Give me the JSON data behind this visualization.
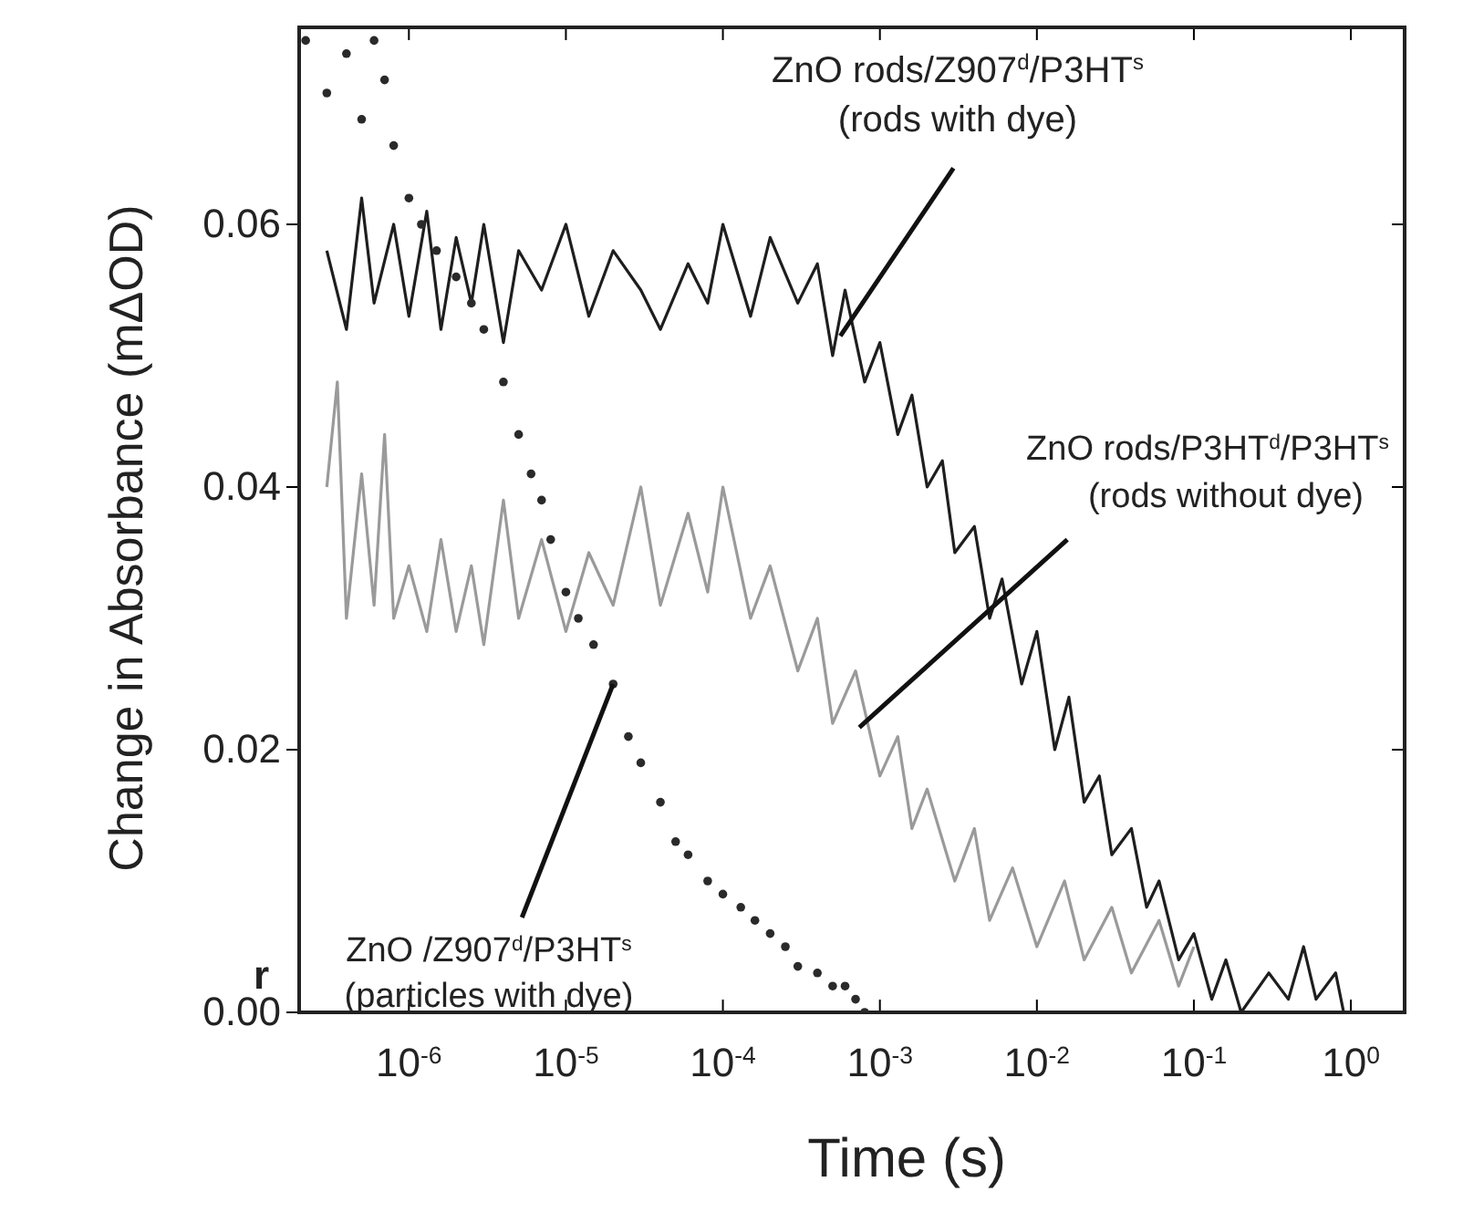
{
  "chart_data": {
    "type": "line",
    "xlabel": "Time (s)",
    "ylabel": "Change in Absorbance (mΔOD)",
    "log": "x",
    "xlim": [
      2e-07,
      2.2
    ],
    "ylim": [
      0,
      0.075
    ],
    "xticks": [
      {
        "value": 1e-06,
        "label": "10$^{-6}$"
      },
      {
        "value": 1e-05,
        "label": "10$^{-5}$"
      },
      {
        "value": 0.0001,
        "label": "10$^{-4}$"
      },
      {
        "value": 0.001,
        "label": "10$^{-3}$"
      },
      {
        "value": 0.01,
        "label": "10$^{-2}$"
      },
      {
        "value": 0.1,
        "label": "10$^{-1}$"
      },
      {
        "value": 1,
        "label": "10$^{0}$"
      }
    ],
    "yticks": [
      {
        "value": 0,
        "label": "0.00"
      },
      {
        "value": 0.02,
        "label": "0.02"
      },
      {
        "value": 0.04,
        "label": "0.04"
      },
      {
        "value": 0.06,
        "label": "0.06"
      }
    ],
    "grid": false,
    "series": [
      {
        "color": "#1e1e1e",
        "x": [
          3e-07,
          4e-07,
          5e-07,
          6e-07,
          8e-07,
          1e-06,
          1.3e-06,
          1.6e-06,
          2e-06,
          2.5e-06,
          3e-06,
          4e-06,
          5e-06,
          7e-06,
          1e-05,
          1.4e-05,
          2e-05,
          3e-05,
          4e-05,
          6e-05,
          8e-05,
          0.0001,
          0.00015,
          0.0002,
          0.0003,
          0.0004,
          0.0005,
          0.0006,
          0.0008,
          0.001,
          0.0013,
          0.0016,
          0.002,
          0.0025,
          0.003,
          0.004,
          0.005,
          0.006,
          0.008,
          0.01,
          0.013,
          0.016,
          0.02,
          0.025,
          0.03,
          0.04,
          0.05,
          0.06,
          0.08,
          0.1,
          0.13,
          0.16,
          0.2,
          0.3,
          0.4,
          0.5,
          0.6,
          0.8,
          0.9
        ],
        "values": [
          0.058,
          0.052,
          0.062,
          0.054,
          0.06,
          0.053,
          0.061,
          0.052,
          0.059,
          0.054,
          0.06,
          0.051,
          0.058,
          0.055,
          0.06,
          0.053,
          0.058,
          0.055,
          0.052,
          0.057,
          0.054,
          0.06,
          0.053,
          0.059,
          0.054,
          0.057,
          0.05,
          0.055,
          0.048,
          0.051,
          0.044,
          0.047,
          0.04,
          0.042,
          0.035,
          0.037,
          0.03,
          0.033,
          0.025,
          0.029,
          0.02,
          0.024,
          0.016,
          0.018,
          0.012,
          0.014,
          0.008,
          0.01,
          0.004,
          0.006,
          0.001,
          0.004,
          0,
          0.003,
          0.001,
          0.005,
          0.001,
          0.003,
          0
        ]
      },
      {
        "color": "#9a9a9a",
        "x": [
          3e-07,
          3.5e-07,
          4e-07,
          5e-07,
          6e-07,
          7e-07,
          8e-07,
          1e-06,
          1.3e-06,
          1.6e-06,
          2e-06,
          2.5e-06,
          3e-06,
          4e-06,
          5e-06,
          7e-06,
          1e-05,
          1.4e-05,
          2e-05,
          3e-05,
          4e-05,
          6e-05,
          8e-05,
          0.0001,
          0.00015,
          0.0002,
          0.0003,
          0.0004,
          0.0005,
          0.0007,
          0.001,
          0.0013,
          0.0016,
          0.002,
          0.003,
          0.004,
          0.005,
          0.007,
          0.01,
          0.015,
          0.02,
          0.03,
          0.04,
          0.06,
          0.08,
          0.1
        ],
        "values": [
          0.04,
          0.048,
          0.03,
          0.041,
          0.031,
          0.044,
          0.03,
          0.034,
          0.029,
          0.036,
          0.029,
          0.034,
          0.028,
          0.039,
          0.03,
          0.036,
          0.029,
          0.035,
          0.031,
          0.04,
          0.031,
          0.038,
          0.032,
          0.04,
          0.03,
          0.034,
          0.026,
          0.03,
          0.022,
          0.026,
          0.018,
          0.021,
          0.014,
          0.017,
          0.01,
          0.014,
          0.007,
          0.011,
          0.005,
          0.01,
          0.004,
          0.008,
          0.003,
          0.007,
          0.002,
          0.005
        ]
      },
      {
        "type": "scatter",
        "marker": "circle",
        "color": "#2a2a2a",
        "x": [
          2.2e-07,
          3e-07,
          4e-07,
          5e-07,
          6e-07,
          7e-07,
          8e-07,
          1e-06,
          1.2e-06,
          1.5e-06,
          2e-06,
          2.5e-06,
          3e-06,
          4e-06,
          5e-06,
          6e-06,
          7e-06,
          8e-06,
          1e-05,
          1.2e-05,
          1.5e-05,
          2e-05,
          2.5e-05,
          3e-05,
          4e-05,
          5e-05,
          6e-05,
          8e-05,
          0.0001,
          0.00013,
          0.00016,
          0.0002,
          0.00025,
          0.0003,
          0.0004,
          0.0005,
          0.0006,
          0.0007,
          0.0008
        ],
        "values": [
          0.074,
          0.07,
          0.073,
          0.068,
          0.074,
          0.071,
          0.066,
          0.062,
          0.06,
          0.058,
          0.056,
          0.054,
          0.052,
          0.048,
          0.044,
          0.041,
          0.039,
          0.036,
          0.032,
          0.03,
          0.028,
          0.025,
          0.021,
          0.019,
          0.016,
          0.013,
          0.012,
          0.01,
          0.009,
          0.008,
          0.007,
          0.006,
          0.005,
          0.0035,
          0.003,
          0.002,
          0.002,
          0.001,
          0
        ]
      }
    ],
    "annotations": [
      "ZnO rods/Z907$^{d}$/P3HT$^{s}$",
      {
        "text": "(rods with dye)",
        "x": 0.00056,
        "y": 0.0515
      },
      "ZnO rods/P3HT$^{d}$/P3HT$^{s}$",
      {
        "text": "(rods without dye)",
        "x": 0.00074,
        "y": 0.0217
      },
      {
        "text": "ZnO /Z907$^{d}$/P3HT$^{s}$",
        "x": 2e-05,
        "y": 0.025
      },
      "(particles with dye)",
      "r"
    ]
  }
}
